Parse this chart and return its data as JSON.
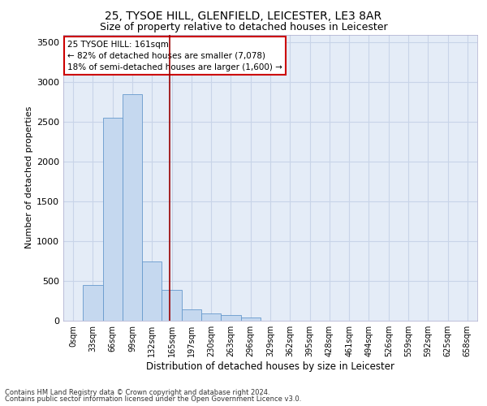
{
  "title1": "25, TYSOE HILL, GLENFIELD, LEICESTER, LE3 8AR",
  "title2": "Size of property relative to detached houses in Leicester",
  "xlabel": "Distribution of detached houses by size in Leicester",
  "ylabel": "Number of detached properties",
  "categories": [
    "0sqm",
    "33sqm",
    "66sqm",
    "99sqm",
    "132sqm",
    "165sqm",
    "197sqm",
    "230sqm",
    "263sqm",
    "296sqm",
    "329sqm",
    "362sqm",
    "395sqm",
    "428sqm",
    "461sqm",
    "494sqm",
    "526sqm",
    "559sqm",
    "592sqm",
    "625sqm",
    "658sqm"
  ],
  "values": [
    5,
    450,
    2550,
    2850,
    750,
    390,
    145,
    95,
    75,
    45,
    5,
    0,
    0,
    0,
    0,
    0,
    0,
    0,
    0,
    0,
    0
  ],
  "bar_color": "#c5d8ef",
  "bar_edge_color": "#6699cc",
  "vline_x": 4.88,
  "vline_color": "#990000",
  "annotation_text": "25 TYSOE HILL: 161sqm\n← 82% of detached houses are smaller (7,078)\n18% of semi-detached houses are larger (1,600) →",
  "annotation_box_color": "#ffffff",
  "annotation_box_edge": "#cc0000",
  "ylim": [
    0,
    3600
  ],
  "yticks": [
    0,
    500,
    1000,
    1500,
    2000,
    2500,
    3000,
    3500
  ],
  "grid_color": "#c8d4e8",
  "bg_color": "#e4ecf7",
  "footer1": "Contains HM Land Registry data © Crown copyright and database right 2024.",
  "footer2": "Contains public sector information licensed under the Open Government Licence v3.0.",
  "title1_fontsize": 10,
  "title2_fontsize": 9,
  "xlabel_fontsize": 8.5,
  "ylabel_fontsize": 8
}
